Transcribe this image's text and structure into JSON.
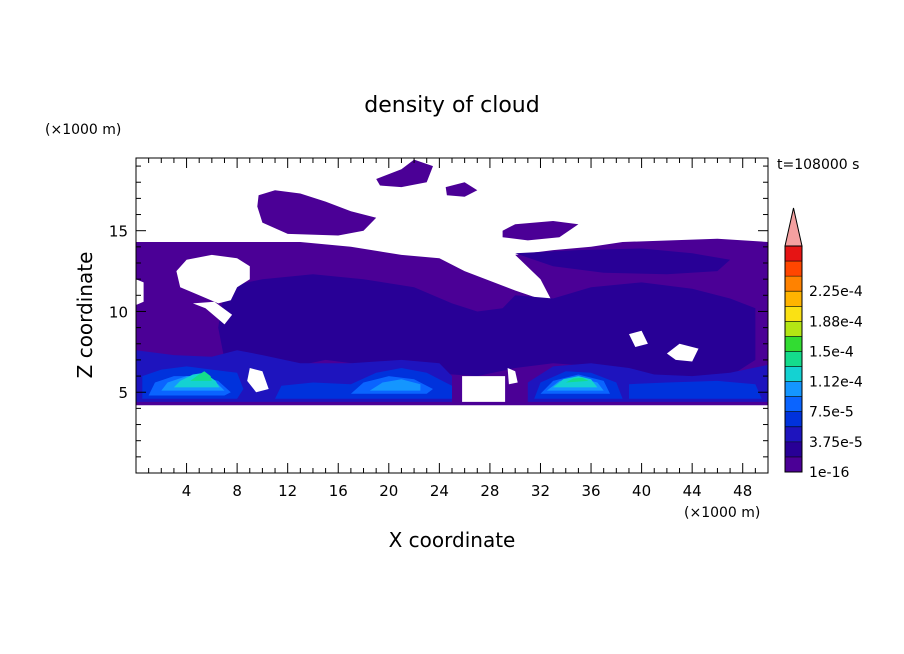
{
  "chart_data": {
    "type": "heatmap",
    "title": "density of cloud",
    "xlabel": "X coordinate",
    "ylabel": "Z coordinate",
    "x_unit": "(×1000 m)",
    "y_unit": "(×1000 m)",
    "time_label": "t=108000 s",
    "xlim": [
      0,
      50
    ],
    "ylim": [
      0,
      19.5
    ],
    "x_ticks": [
      4,
      8,
      12,
      16,
      20,
      24,
      28,
      32,
      36,
      40,
      44,
      48
    ],
    "y_ticks": [
      5,
      10,
      15
    ],
    "colorbar_labels": [
      "1e-16",
      "3.75e-5",
      "7.5e-5",
      "1.12e-4",
      "1.5e-4",
      "1.88e-4",
      "2.25e-4"
    ],
    "colorbar_colors": [
      "#4b0096",
      "#280096",
      "#1e14be",
      "#0032dc",
      "#0a64ff",
      "#1496ff",
      "#14d2d2",
      "#14dc8c",
      "#32dc32",
      "#b4e614",
      "#fae114",
      "#ffb400",
      "#ff8200",
      "#ff4600",
      "#e61414"
    ],
    "colorbar_extend_color": "#f4a0a0",
    "base_color": "#4b0096",
    "regions": [
      {
        "name": "main-upper-layer",
        "level": 0,
        "polygon": [
          [
            0,
            14.3
          ],
          [
            13,
            14.3
          ],
          [
            17,
            14
          ],
          [
            21,
            13.5
          ],
          [
            24,
            13.3
          ],
          [
            26,
            12.5
          ],
          [
            30,
            11.3
          ],
          [
            33,
            10.5
          ],
          [
            32,
            12
          ],
          [
            30,
            13.5
          ],
          [
            33,
            13.8
          ],
          [
            36,
            14
          ],
          [
            38.5,
            14.3
          ],
          [
            46,
            14.5
          ],
          [
            50,
            14.3
          ],
          [
            50,
            4.2
          ],
          [
            0,
            4.2
          ]
        ]
      },
      {
        "name": "cirrus-1",
        "level": 0,
        "polygon": [
          [
            9.7,
            17.2
          ],
          [
            11,
            17.5
          ],
          [
            13,
            17.3
          ],
          [
            15,
            16.8
          ],
          [
            17,
            16.2
          ],
          [
            19,
            15.8
          ],
          [
            18,
            15
          ],
          [
            16,
            14.7
          ],
          [
            12,
            14.8
          ],
          [
            10,
            15.5
          ],
          [
            9.6,
            16.5
          ]
        ]
      },
      {
        "name": "cirrus-2",
        "level": 0,
        "polygon": [
          [
            19,
            18.2
          ],
          [
            21,
            18.8
          ],
          [
            22,
            19.4
          ],
          [
            23.5,
            19
          ],
          [
            23,
            18
          ],
          [
            21,
            17.7
          ],
          [
            19.3,
            17.8
          ]
        ]
      },
      {
        "name": "cirrus-3",
        "level": 0,
        "polygon": [
          [
            24.5,
            17.7
          ],
          [
            26,
            18
          ],
          [
            27,
            17.5
          ],
          [
            26,
            17.1
          ],
          [
            24.6,
            17.2
          ]
        ]
      },
      {
        "name": "cirrus-4",
        "level": 0,
        "polygon": [
          [
            29,
            15
          ],
          [
            30,
            15.4
          ],
          [
            33,
            15.6
          ],
          [
            35,
            15.4
          ],
          [
            33.5,
            14.6
          ],
          [
            31,
            14.4
          ],
          [
            29,
            14.6
          ]
        ]
      },
      {
        "name": "level-1a",
        "level": 1,
        "polygon": [
          [
            7,
            11.5
          ],
          [
            10,
            12
          ],
          [
            14,
            12.3
          ],
          [
            18,
            12
          ],
          [
            22,
            11.5
          ],
          [
            25,
            10.5
          ],
          [
            27,
            10
          ],
          [
            29,
            10.2
          ],
          [
            30,
            11
          ],
          [
            33,
            10.8
          ],
          [
            36,
            11.5
          ],
          [
            40,
            11.8
          ],
          [
            44,
            11.4
          ],
          [
            47,
            10.8
          ],
          [
            49,
            10.2
          ],
          [
            49,
            7
          ],
          [
            47,
            6
          ],
          [
            44,
            5.5
          ],
          [
            41,
            5.7
          ],
          [
            38,
            6.5
          ],
          [
            33,
            6.8
          ],
          [
            30,
            6.5
          ],
          [
            27,
            6
          ],
          [
            23,
            6.2
          ],
          [
            19,
            6.6
          ],
          [
            15,
            7
          ],
          [
            12,
            6.5
          ],
          [
            9,
            6
          ],
          [
            7,
            7
          ],
          [
            6.5,
            9
          ]
        ]
      },
      {
        "name": "level-1b",
        "level": 1,
        "polygon": [
          [
            30,
            13.6
          ],
          [
            35,
            13.8
          ],
          [
            40,
            13.9
          ],
          [
            44,
            13.6
          ],
          [
            47,
            13.2
          ],
          [
            46,
            12.5
          ],
          [
            42,
            12.3
          ],
          [
            37,
            12.4
          ],
          [
            33,
            12.8
          ]
        ]
      },
      {
        "name": "level-2a",
        "level": 2,
        "polygon": [
          [
            0,
            7.6
          ],
          [
            3,
            7.3
          ],
          [
            6,
            7.2
          ],
          [
            8,
            7.6
          ],
          [
            10,
            7.3
          ],
          [
            13,
            6.8
          ],
          [
            17,
            6.8
          ],
          [
            21,
            7
          ],
          [
            24,
            6.8
          ],
          [
            25,
            6
          ],
          [
            25,
            4.4
          ],
          [
            0,
            4.4
          ]
        ]
      },
      {
        "name": "level-2b",
        "level": 2,
        "polygon": [
          [
            31,
            4.4
          ],
          [
            31,
            5.6
          ],
          [
            33,
            6.6
          ],
          [
            36,
            6.8
          ],
          [
            39,
            6.5
          ],
          [
            41,
            6.1
          ],
          [
            44,
            6
          ],
          [
            47,
            6.2
          ],
          [
            50,
            6.7
          ],
          [
            50,
            4.4
          ]
        ]
      },
      {
        "name": "level-3a",
        "level": 3,
        "polygon": [
          [
            0.5,
            4.6
          ],
          [
            0.5,
            6
          ],
          [
            2,
            6.4
          ],
          [
            4,
            6.6
          ],
          [
            6,
            6.4
          ],
          [
            8,
            6.2
          ],
          [
            8.5,
            5.2
          ],
          [
            8,
            4.6
          ]
        ]
      },
      {
        "name": "level-3b",
        "level": 3,
        "polygon": [
          [
            11,
            4.6
          ],
          [
            11.5,
            5.4
          ],
          [
            14,
            5.6
          ],
          [
            17,
            5.5
          ],
          [
            19,
            6.2
          ],
          [
            21,
            6.5
          ],
          [
            23,
            6.2
          ],
          [
            25,
            5.4
          ],
          [
            25,
            4.6
          ]
        ]
      },
      {
        "name": "level-3c",
        "level": 3,
        "polygon": [
          [
            31.5,
            4.6
          ],
          [
            32,
            5.6
          ],
          [
            34,
            6.3
          ],
          [
            36,
            6.2
          ],
          [
            38,
            5.6
          ],
          [
            38.5,
            4.6
          ]
        ]
      },
      {
        "name": "level-3d",
        "level": 3,
        "polygon": [
          [
            39,
            4.6
          ],
          [
            39,
            5.5
          ],
          [
            42,
            5.6
          ],
          [
            46,
            5.7
          ],
          [
            49,
            5.5
          ],
          [
            49.5,
            4.6
          ]
        ]
      },
      {
        "name": "level-4a",
        "level": 4,
        "polygon": [
          [
            1,
            4.8
          ],
          [
            1.5,
            5.6
          ],
          [
            3,
            6
          ],
          [
            5,
            6
          ],
          [
            6.5,
            5.7
          ],
          [
            7.5,
            5
          ],
          [
            7,
            4.8
          ]
        ]
      },
      {
        "name": "level-4b",
        "level": 4,
        "polygon": [
          [
            17,
            4.9
          ],
          [
            18,
            5.6
          ],
          [
            20,
            6
          ],
          [
            22,
            5.8
          ],
          [
            23.5,
            5.2
          ],
          [
            23,
            4.9
          ]
        ]
      },
      {
        "name": "level-4c",
        "level": 4,
        "polygon": [
          [
            32,
            4.9
          ],
          [
            33,
            5.7
          ],
          [
            35,
            6.1
          ],
          [
            37,
            5.7
          ],
          [
            37.5,
            4.9
          ]
        ]
      },
      {
        "name": "level-5a",
        "level": 5,
        "polygon": [
          [
            2,
            5.1
          ],
          [
            2.5,
            5.6
          ],
          [
            4,
            6
          ],
          [
            5.3,
            6
          ],
          [
            6.5,
            5.5
          ],
          [
            7,
            5.1
          ]
        ]
      },
      {
        "name": "level-5b",
        "level": 5,
        "polygon": [
          [
            18.5,
            5.1
          ],
          [
            19.5,
            5.6
          ],
          [
            21,
            5.8
          ],
          [
            22.5,
            5.5
          ],
          [
            22.5,
            5.1
          ]
        ]
      },
      {
        "name": "level-5c",
        "level": 5,
        "polygon": [
          [
            32.5,
            5.1
          ],
          [
            33.5,
            5.7
          ],
          [
            35,
            5.9
          ],
          [
            36.5,
            5.6
          ],
          [
            37,
            5.1
          ]
        ]
      },
      {
        "name": "level-6a",
        "level": 6,
        "polygon": [
          [
            3,
            5.3
          ],
          [
            3.5,
            5.7
          ],
          [
            4.5,
            6.1
          ],
          [
            5.4,
            6.2
          ],
          [
            6.3,
            5.7
          ],
          [
            6.6,
            5.3
          ]
        ]
      },
      {
        "name": "level-6b",
        "level": 6,
        "polygon": [
          [
            33,
            5.3
          ],
          [
            33.8,
            5.8
          ],
          [
            35,
            6
          ],
          [
            36,
            5.8
          ],
          [
            36.5,
            5.3
          ]
        ]
      },
      {
        "name": "level-7a",
        "level": 7,
        "polygon": [
          [
            4.3,
            5.7
          ],
          [
            4.8,
            6
          ],
          [
            5.4,
            6.3
          ],
          [
            5.9,
            6
          ],
          [
            6,
            5.7
          ]
        ]
      },
      {
        "name": "level-7b",
        "level": 7,
        "polygon": [
          [
            34,
            5.6
          ],
          [
            34.6,
            5.85
          ],
          [
            35.3,
            5.9
          ],
          [
            35.8,
            5.7
          ]
        ]
      }
    ],
    "gaps": [
      {
        "name": "gap-left",
        "polygon": [
          [
            3.2,
            12.5
          ],
          [
            4,
            13.2
          ],
          [
            6,
            13.5
          ],
          [
            8,
            13.3
          ],
          [
            9,
            12.8
          ],
          [
            9,
            12
          ],
          [
            8,
            11.5
          ],
          [
            7.5,
            10.7
          ],
          [
            6.5,
            10.5
          ],
          [
            5,
            11
          ],
          [
            3.5,
            11.5
          ]
        ]
      },
      {
        "name": "gap-left-2",
        "polygon": [
          [
            4.5,
            10.5
          ],
          [
            5.5,
            10.2
          ],
          [
            7,
            9.2
          ],
          [
            7.6,
            9.8
          ],
          [
            6.2,
            10.6
          ]
        ]
      },
      {
        "name": "gap-left-3",
        "polygon": [
          [
            0,
            12
          ],
          [
            0.6,
            11.8
          ],
          [
            0.6,
            10.6
          ],
          [
            0,
            10.4
          ]
        ]
      },
      {
        "name": "gap-low-1",
        "polygon": [
          [
            9,
            6.5
          ],
          [
            10,
            6.3
          ],
          [
            10.5,
            5.2
          ],
          [
            9.5,
            5
          ],
          [
            8.8,
            5.7
          ]
        ]
      },
      {
        "name": "gap-low-2",
        "polygon": [
          [
            25.8,
            4.4
          ],
          [
            25.8,
            6
          ],
          [
            29.2,
            6
          ],
          [
            29.2,
            4.4
          ]
        ]
      },
      {
        "name": "gap-low-3",
        "polygon": [
          [
            29.4,
            6.5
          ],
          [
            30,
            6.3
          ],
          [
            30.2,
            5.6
          ],
          [
            29.5,
            5.5
          ]
        ]
      },
      {
        "name": "gap-right-1",
        "polygon": [
          [
            39,
            8.6
          ],
          [
            40,
            8.8
          ],
          [
            40.5,
            8
          ],
          [
            39.5,
            7.8
          ]
        ]
      },
      {
        "name": "gap-right-2",
        "polygon": [
          [
            42,
            7.4
          ],
          [
            43,
            8
          ],
          [
            44.5,
            7.7
          ],
          [
            44,
            6.9
          ],
          [
            42.7,
            7
          ]
        ]
      }
    ]
  }
}
